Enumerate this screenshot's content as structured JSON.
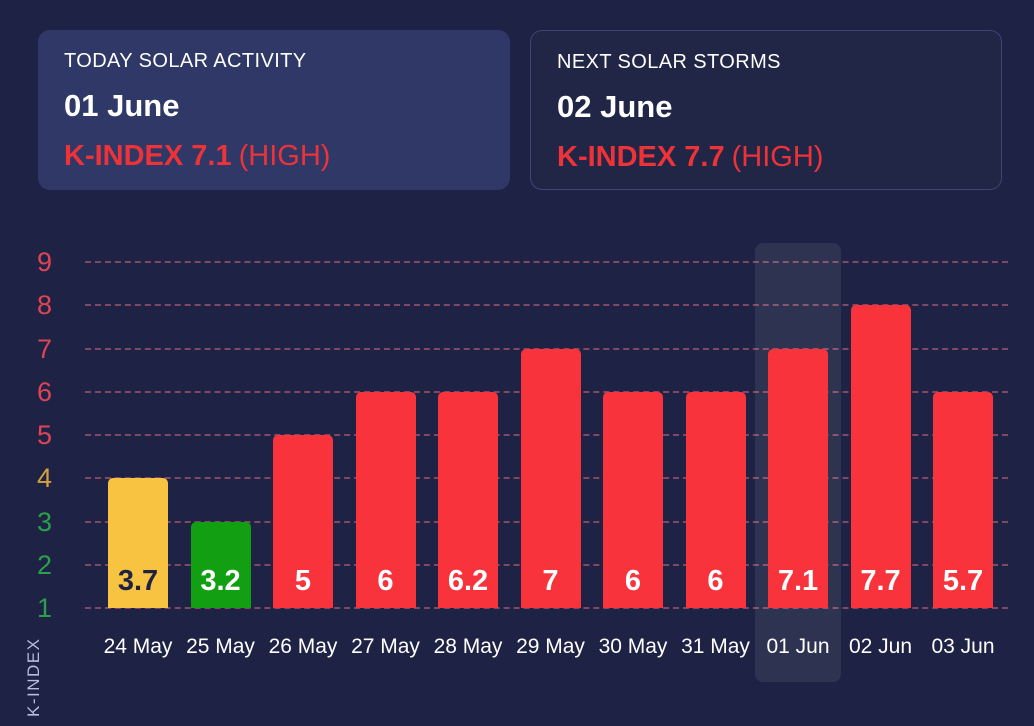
{
  "header_cards": {
    "today": {
      "title": "TODAY SOLAR ACTIVITY",
      "date": "01 June",
      "kindex": "K-INDEX 7.1",
      "level": "(HIGH)"
    },
    "next": {
      "title": "NEXT SOLAR STORMS",
      "date": "02 June",
      "kindex": "K-INDEX 7.7",
      "level": "(HIGH)"
    }
  },
  "chart_data": {
    "type": "bar",
    "ylabel": "K-INDEX",
    "categories": [
      "24 May",
      "25 May",
      "26 May",
      "27 May",
      "28 May",
      "29 May",
      "30 May",
      "31 May",
      "01 Jun",
      "02 Jun",
      "03 Jun"
    ],
    "values": [
      3.7,
      3.2,
      5,
      6,
      6.2,
      7,
      6,
      6,
      7.1,
      7.7,
      5.7
    ],
    "value_labels": [
      "3.7",
      "3.2",
      "5",
      "6",
      "6.2",
      "7",
      "6",
      "6",
      "7.1",
      "7.7",
      "5.7"
    ],
    "bar_rendered_heights": [
      4,
      3,
      5,
      6,
      6,
      7,
      6,
      6,
      7,
      8,
      6
    ],
    "bar_colors": [
      "#f8c341",
      "#12a012",
      "#f8333b",
      "#f8333b",
      "#f8333b",
      "#f8333b",
      "#f8333b",
      "#f8333b",
      "#f8333b",
      "#f8333b",
      "#f8333b"
    ],
    "value_label_colors": [
      "#1e2244",
      "#ffffff",
      "#ffffff",
      "#ffffff",
      "#ffffff",
      "#ffffff",
      "#ffffff",
      "#ffffff",
      "#ffffff",
      "#ffffff",
      "#ffffff"
    ],
    "yticks": [
      {
        "label": "1",
        "color": "#2aa04a"
      },
      {
        "label": "2",
        "color": "#2aa04a"
      },
      {
        "label": "3",
        "color": "#2aa04a"
      },
      {
        "label": "4",
        "color": "#d4a13c"
      },
      {
        "label": "5",
        "color": "#e04454"
      },
      {
        "label": "6",
        "color": "#e04454"
      },
      {
        "label": "7",
        "color": "#e04454"
      },
      {
        "label": "8",
        "color": "#e04454"
      },
      {
        "label": "9",
        "color": "#e04454"
      }
    ],
    "ylim": [
      0.9,
      9.4
    ],
    "grid": "horizontal-dashed",
    "gridline_color": "rgba(250,120,140,0.45)",
    "highlighted_category": "01 Jun",
    "highlight_index": 8,
    "legend": "none"
  },
  "colors": {
    "background": "#1e2244",
    "card_background": "#2f3866",
    "card_border": "#3d4574",
    "accent_red": "#ee3338",
    "column_highlight": "rgba(255,255,255,0.08)"
  }
}
